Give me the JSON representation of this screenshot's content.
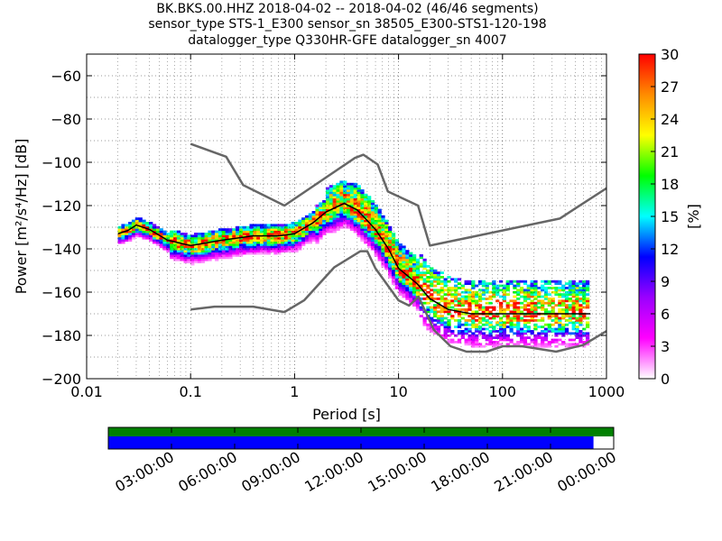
{
  "title_lines": [
    "BK.BKS.00.HHZ   2018-04-02 -- 2018-04-02  (46/46 segments)",
    "sensor_type STS-1_E300 sensor_sn 38505_E300-STS1-120-198",
    "datalogger_type Q330HR-GFE datalogger_sn 4007"
  ],
  "chart_data": {
    "type": "heatmap",
    "xlabel": "Period [s]",
    "ylabel": "Power [m²/s⁴/Hz] [dB]",
    "x_scale": "log",
    "xlim": [
      0.01,
      1000
    ],
    "ylim": [
      -200,
      -50
    ],
    "x_ticks": [
      0.01,
      0.1,
      1,
      10,
      100,
      1000
    ],
    "x_tick_labels": [
      "0.01",
      "0.1",
      "1",
      "10",
      "100",
      "1000"
    ],
    "y_ticks": [
      -200,
      -180,
      -160,
      -140,
      -120,
      -100,
      -80,
      -60
    ],
    "y_tick_labels": [
      "−200",
      "−180",
      "−160",
      "−140",
      "−120",
      "−100",
      "−80",
      "−60"
    ],
    "grid": "dotted",
    "colorbar": {
      "label": "[%]",
      "range": [
        0,
        30
      ],
      "ticks": [
        0,
        3,
        6,
        9,
        12,
        15,
        18,
        21,
        24,
        27,
        30
      ],
      "colormap": [
        "#ffffff",
        "#ff00ff",
        "#9b00ff",
        "#0000ff",
        "#00ffff",
        "#00ff00",
        "#ffff00",
        "#ff8c00",
        "#ff0000"
      ]
    },
    "noise_models": {
      "NHNM": [
        [
          0.1,
          -91.5
        ],
        [
          0.22,
          -97.4
        ],
        [
          0.32,
          -110.5
        ],
        [
          0.8,
          -120
        ],
        [
          3.8,
          -98
        ],
        [
          4.6,
          -96.5
        ],
        [
          6.3,
          -101
        ],
        [
          7.9,
          -113.5
        ],
        [
          15.4,
          -120
        ],
        [
          20,
          -138.5
        ],
        [
          354.8,
          -126
        ],
        [
          1000,
          -112
        ]
      ],
      "NLNM": [
        [
          0.1,
          -168
        ],
        [
          0.17,
          -166.7
        ],
        [
          0.4,
          -166.7
        ],
        [
          0.8,
          -169.2
        ],
        [
          1.24,
          -163.7
        ],
        [
          2.4,
          -148.6
        ],
        [
          4.3,
          -141.1
        ],
        [
          5,
          -141.1
        ],
        [
          6,
          -149
        ],
        [
          10,
          -163.8
        ],
        [
          12.6,
          -166.2
        ],
        [
          15.6,
          -162.1
        ],
        [
          21.9,
          -177.5
        ],
        [
          31.6,
          -185
        ],
        [
          45,
          -187.5
        ],
        [
          70,
          -187.5
        ],
        [
          101,
          -185
        ],
        [
          154,
          -185
        ],
        [
          328,
          -187.5
        ],
        [
          600,
          -184.4
        ],
        [
          1000,
          -178
        ]
      ]
    },
    "median_curve": [
      [
        0.02,
        -133
      ],
      [
        0.025,
        -131.5
      ],
      [
        0.03,
        -129
      ],
      [
        0.04,
        -131
      ],
      [
        0.06,
        -136
      ],
      [
        0.1,
        -138.5
      ],
      [
        0.2,
        -136
      ],
      [
        0.4,
        -134
      ],
      [
        0.7,
        -134
      ],
      [
        1,
        -133
      ],
      [
        1.5,
        -128
      ],
      [
        2,
        -123
      ],
      [
        3,
        -119
      ],
      [
        4,
        -122
      ],
      [
        6,
        -131
      ],
      [
        8,
        -140
      ],
      [
        10,
        -149
      ],
      [
        15,
        -156
      ],
      [
        20,
        -163
      ],
      [
        30,
        -168
      ],
      [
        50,
        -170
      ],
      [
        100,
        -170
      ],
      [
        200,
        -170
      ],
      [
        700,
        -170
      ]
    ],
    "timeline": {
      "tick_labels": [
        "03:00:00",
        "06:00:00",
        "09:00:00",
        "12:00:00",
        "15:00:00",
        "18:00:00",
        "21:00:00",
        "00:00:00"
      ],
      "data_fraction": 0.96,
      "gap_fraction": 1.0,
      "data_color": "#0000ff",
      "gap_color": "#008000"
    }
  }
}
